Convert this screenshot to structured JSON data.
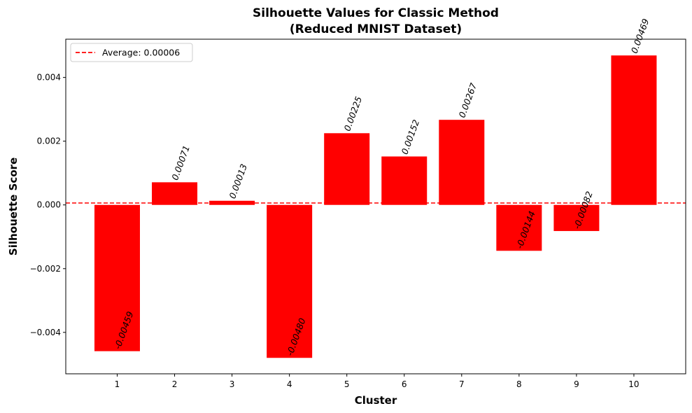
{
  "chart_data": {
    "type": "bar",
    "title_line1": "Silhouette Values for Classic Method",
    "title_line2": "(Reduced MNIST Dataset)",
    "xlabel": "Cluster",
    "ylabel": "Silhouette Score",
    "categories": [
      "1",
      "2",
      "3",
      "4",
      "5",
      "6",
      "7",
      "8",
      "9",
      "10"
    ],
    "values": [
      -0.00459,
      0.00071,
      0.00013,
      -0.0048,
      0.00225,
      0.00152,
      0.00267,
      -0.00144,
      -0.00082,
      0.00469
    ],
    "value_labels": [
      "-0.00459",
      "0.00071",
      "0.00013",
      "-0.00480",
      "0.00225",
      "0.00152",
      "0.00267",
      "-0.00144",
      "-0.00082",
      "0.00469"
    ],
    "ylim": [
      -0.0053,
      0.0052
    ],
    "yticks": [
      -0.004,
      -0.002,
      0.0,
      0.002,
      0.004
    ],
    "ytick_labels": [
      "−0.004",
      "−0.002",
      "0.000",
      "0.002",
      "0.004"
    ],
    "bar_color": "#ff0000",
    "average": {
      "value": 6e-05,
      "label": "Average: 0.00006",
      "color": "#ff0000",
      "style": "dashed"
    },
    "legend_position": "top-left",
    "grid": false
  }
}
